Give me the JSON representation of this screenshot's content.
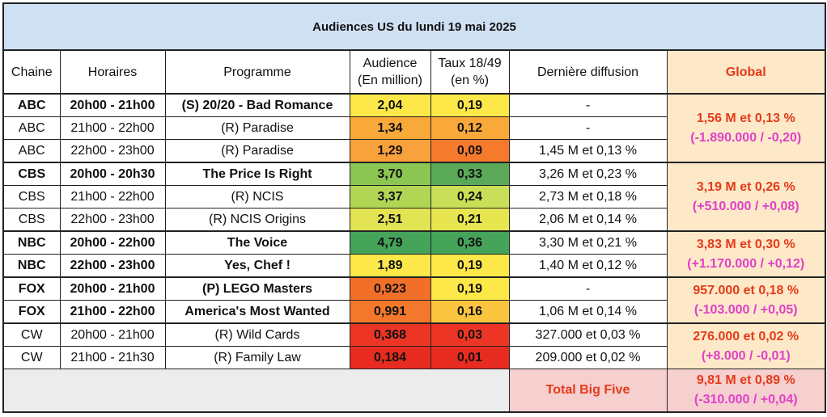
{
  "title": "Audiences US du lundi 19 mai 2025",
  "headers": {
    "chaine": "Chaine",
    "horaires": "Horaires",
    "programme": "Programme",
    "audience_l1": "Audience",
    "audience_l2": "(En million)",
    "taux_l1": "Taux 18/49",
    "taux_l2": "(en %)",
    "derniere": "Dernière diffusion",
    "global": "Global"
  },
  "rows": [
    {
      "chaine": "ABC",
      "horaires": "20h00 - 21h00",
      "programme": "(S) 20/20 - Bad Romance",
      "audience": "2,04",
      "taux": "0,19",
      "derniere": "-",
      "bold": true,
      "aud_color": "#fde84a",
      "taux_color": "#fde84a"
    },
    {
      "chaine": "ABC",
      "horaires": "21h00 - 22h00",
      "programme": "(R) Paradise",
      "audience": "1,34",
      "taux": "0,12",
      "derniere": "-",
      "bold": false,
      "aud_color": "#f9a83a",
      "taux_color": "#f9a83a"
    },
    {
      "chaine": "ABC",
      "horaires": "22h00 - 23h00",
      "programme": "(R) Paradise",
      "audience": "1,29",
      "taux": "0,09",
      "derniere": "1,45 M et 0,13 %",
      "bold": false,
      "aud_color": "#f9a13a",
      "taux_color": "#f57a2c"
    },
    {
      "chaine": "CBS",
      "horaires": "20h00 - 20h30",
      "programme": "The Price Is Right",
      "audience": "3,70",
      "taux": "0,33",
      "derniere": "3,26 M et 0,23 %",
      "bold": true,
      "aud_color": "#8cc653",
      "taux_color": "#5aaa5a"
    },
    {
      "chaine": "CBS",
      "horaires": "21h00 - 22h00",
      "programme": "(R) NCIS",
      "audience": "3,37",
      "taux": "0,24",
      "derniere": "2,73 M et 0,18 %",
      "bold": false,
      "aud_color": "#b0d654",
      "taux_color": "#c8df57"
    },
    {
      "chaine": "CBS",
      "horaires": "22h00 - 23h00",
      "programme": "(R) NCIS Origins",
      "audience": "2,51",
      "taux": "0,21",
      "derniere": "2,06 M et 0,14 %",
      "bold": false,
      "aud_color": "#e3e453",
      "taux_color": "#e7e650"
    },
    {
      "chaine": "NBC",
      "horaires": "20h00 - 22h00",
      "programme": "The Voice",
      "audience": "4,79",
      "taux": "0,36",
      "derniere": "3,30 M et 0,21 %",
      "bold": true,
      "aud_color": "#45a35a",
      "taux_color": "#45a35a"
    },
    {
      "chaine": "NBC",
      "horaires": "22h00 - 23h00",
      "programme": "Yes, Chef !",
      "audience": "1,89",
      "taux": "0,19",
      "derniere": "1,40 M et 0,12 %",
      "bold": true,
      "aud_color": "#fde84a",
      "taux_color": "#fde84a"
    },
    {
      "chaine": "FOX",
      "horaires": "20h00 - 21h00",
      "programme": "(P) LEGO Masters",
      "audience": "0,923",
      "taux": "0,19",
      "derniere": "-",
      "bold": true,
      "aud_color": "#f26f2a",
      "taux_color": "#fde84a"
    },
    {
      "chaine": "FOX",
      "horaires": "21h00 - 22h00",
      "programme": "America's Most Wanted",
      "audience": "0,991",
      "taux": "0,16",
      "derniere": "1,06 M et 0,14 %",
      "bold": true,
      "aud_color": "#f4782c",
      "taux_color": "#fbc540"
    },
    {
      "chaine": "CW",
      "horaires": "20h00 - 21h00",
      "programme": "(R) Wild Cards",
      "audience": "0,368",
      "taux": "0,03",
      "derniere": "327.000 et 0,03 %",
      "bold": false,
      "aud_color": "#ec3524",
      "taux_color": "#ec3524"
    },
    {
      "chaine": "CW",
      "horaires": "21h00 - 21h30",
      "programme": "(R) Family Law",
      "audience": "0,184",
      "taux": "0,01",
      "derniere": "209.000 et 0,02 %",
      "bold": false,
      "aud_color": "#e82b20",
      "taux_color": "#e82b20"
    }
  ],
  "globals": [
    {
      "main": "1,56 M et 0,13 %",
      "diff": "(-1.890.000 / -0,20)"
    },
    {
      "main": "3,19 M et 0,26 %",
      "diff": "(+510.000 / +0,08)"
    },
    {
      "main": "3,83 M et 0,30 %",
      "diff": "(+1.170.000 / +0,12)"
    },
    {
      "main": "957.000 et 0,18 %",
      "diff": "(-103.000 / +0,05)"
    },
    {
      "main": "276.000 et 0,02 %",
      "diff": "(+8.000 / -0,01)"
    }
  ],
  "footer": {
    "label": "Total Big Five",
    "main": "9,81 M et 0,89 %",
    "diff": "(-310.000 / +0,04)"
  }
}
